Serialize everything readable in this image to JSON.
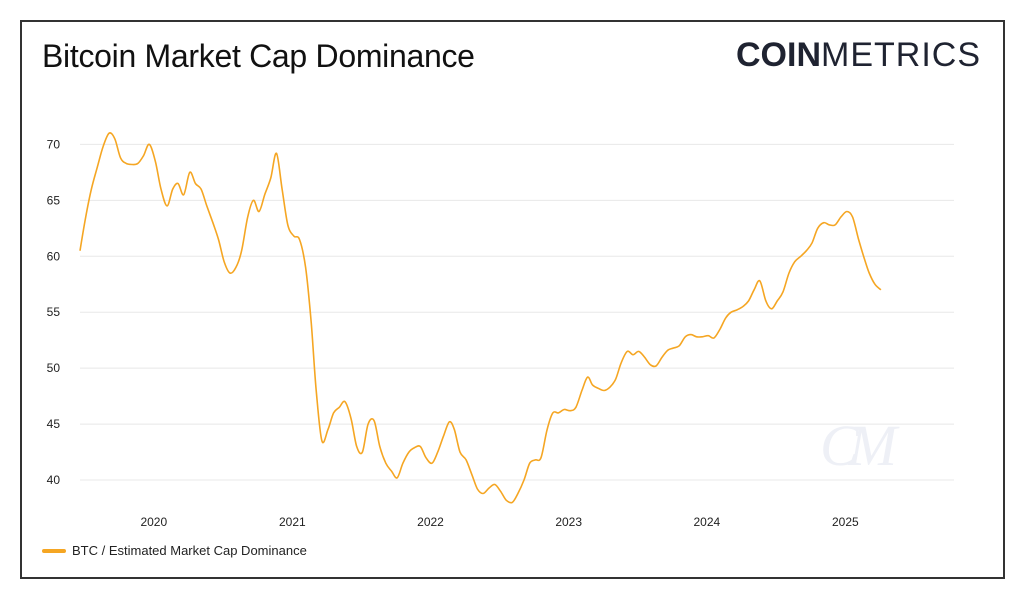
{
  "header": {
    "title": "Bitcoin Market Cap Dominance",
    "logo_bold": "COIN",
    "logo_light": "METRICS"
  },
  "watermark": "CM",
  "colors": {
    "series": "#f5a623",
    "grid": "#e8e8e8",
    "text": "#222222"
  },
  "chart_data": {
    "type": "line",
    "title": "Bitcoin Market Cap Dominance",
    "xlabel": "",
    "ylabel": "",
    "x_ticks": [
      "2020",
      "2021",
      "2022",
      "2023",
      "2024",
      "2025"
    ],
    "y_ticks": [
      40,
      45,
      50,
      55,
      60,
      65,
      70
    ],
    "xlim": [
      "2019-06-20",
      "2025-10-15"
    ],
    "ylim": [
      37.5,
      72
    ],
    "grid": "horizontal",
    "legend": "bottom-left",
    "series": [
      {
        "name": "BTC / Estimated Market Cap Dominance",
        "points": [
          [
            "2019-06-20",
            60.5
          ],
          [
            "2019-07-05",
            63.5
          ],
          [
            "2019-07-20",
            66.0
          ],
          [
            "2019-08-05",
            68.0
          ],
          [
            "2019-08-20",
            69.8
          ],
          [
            "2019-09-05",
            71.0
          ],
          [
            "2019-09-20",
            70.5
          ],
          [
            "2019-10-05",
            68.8
          ],
          [
            "2019-10-20",
            68.3
          ],
          [
            "2019-11-05",
            68.2
          ],
          [
            "2019-11-20",
            68.3
          ],
          [
            "2019-12-05",
            69.0
          ],
          [
            "2019-12-20",
            70.0
          ],
          [
            "2020-01-05",
            68.5
          ],
          [
            "2020-01-20",
            66.0
          ],
          [
            "2020-02-05",
            64.5
          ],
          [
            "2020-02-20",
            66.0
          ],
          [
            "2020-03-05",
            66.5
          ],
          [
            "2020-03-20",
            65.5
          ],
          [
            "2020-04-05",
            67.5
          ],
          [
            "2020-04-20",
            66.5
          ],
          [
            "2020-05-05",
            66.0
          ],
          [
            "2020-05-20",
            64.5
          ],
          [
            "2020-06-05",
            63.0
          ],
          [
            "2020-06-20",
            61.5
          ],
          [
            "2020-07-05",
            59.5
          ],
          [
            "2020-07-20",
            58.5
          ],
          [
            "2020-08-05",
            59.0
          ],
          [
            "2020-08-20",
            60.5
          ],
          [
            "2020-09-05",
            63.5
          ],
          [
            "2020-09-20",
            65.0
          ],
          [
            "2020-10-05",
            64.0
          ],
          [
            "2020-10-20",
            65.5
          ],
          [
            "2020-11-05",
            67.0
          ],
          [
            "2020-11-20",
            69.2
          ],
          [
            "2020-12-05",
            66.0
          ],
          [
            "2020-12-20",
            62.8
          ],
          [
            "2021-01-05",
            61.8
          ],
          [
            "2021-01-20",
            61.5
          ],
          [
            "2021-02-05",
            59.0
          ],
          [
            "2021-02-20",
            54.0
          ],
          [
            "2021-03-05",
            48.0
          ],
          [
            "2021-03-20",
            43.5
          ],
          [
            "2021-04-05",
            44.5
          ],
          [
            "2021-04-20",
            46.0
          ],
          [
            "2021-05-05",
            46.5
          ],
          [
            "2021-05-20",
            47.0
          ],
          [
            "2021-06-05",
            45.5
          ],
          [
            "2021-06-20",
            43.0
          ],
          [
            "2021-07-05",
            42.5
          ],
          [
            "2021-07-20",
            45.0
          ],
          [
            "2021-08-05",
            45.3
          ],
          [
            "2021-08-20",
            43.0
          ],
          [
            "2021-09-05",
            41.5
          ],
          [
            "2021-09-20",
            40.8
          ],
          [
            "2021-10-05",
            40.2
          ],
          [
            "2021-10-20",
            41.5
          ],
          [
            "2021-11-05",
            42.5
          ],
          [
            "2021-11-20",
            42.9
          ],
          [
            "2021-12-05",
            43.0
          ],
          [
            "2021-12-20",
            42.0
          ],
          [
            "2022-01-05",
            41.5
          ],
          [
            "2022-01-20",
            42.5
          ],
          [
            "2022-02-05",
            44.0
          ],
          [
            "2022-02-20",
            45.2
          ],
          [
            "2022-03-05",
            44.5
          ],
          [
            "2022-03-20",
            42.5
          ],
          [
            "2022-04-05",
            41.8
          ],
          [
            "2022-04-20",
            40.5
          ],
          [
            "2022-05-05",
            39.2
          ],
          [
            "2022-05-20",
            38.8
          ],
          [
            "2022-06-05",
            39.3
          ],
          [
            "2022-06-20",
            39.6
          ],
          [
            "2022-07-05",
            39.0
          ],
          [
            "2022-07-20",
            38.2
          ],
          [
            "2022-08-05",
            38.0
          ],
          [
            "2022-08-20",
            38.8
          ],
          [
            "2022-09-05",
            40.0
          ],
          [
            "2022-09-20",
            41.5
          ],
          [
            "2022-10-05",
            41.8
          ],
          [
            "2022-10-20",
            42.0
          ],
          [
            "2022-11-05",
            44.5
          ],
          [
            "2022-11-20",
            46.0
          ],
          [
            "2022-12-05",
            46.0
          ],
          [
            "2022-12-20",
            46.3
          ],
          [
            "2023-01-05",
            46.2
          ],
          [
            "2023-01-20",
            46.5
          ],
          [
            "2023-02-05",
            48.0
          ],
          [
            "2023-02-20",
            49.2
          ],
          [
            "2023-03-05",
            48.5
          ],
          [
            "2023-03-20",
            48.2
          ],
          [
            "2023-04-05",
            48.0
          ],
          [
            "2023-04-20",
            48.3
          ],
          [
            "2023-05-05",
            49.0
          ],
          [
            "2023-05-20",
            50.5
          ],
          [
            "2023-06-05",
            51.5
          ],
          [
            "2023-06-20",
            51.2
          ],
          [
            "2023-07-05",
            51.5
          ],
          [
            "2023-07-20",
            51.0
          ],
          [
            "2023-08-05",
            50.3
          ],
          [
            "2023-08-20",
            50.2
          ],
          [
            "2023-09-05",
            51.0
          ],
          [
            "2023-09-20",
            51.6
          ],
          [
            "2023-10-05",
            51.8
          ],
          [
            "2023-10-20",
            52.0
          ],
          [
            "2023-11-05",
            52.8
          ],
          [
            "2023-11-20",
            53.0
          ],
          [
            "2023-12-05",
            52.8
          ],
          [
            "2023-12-20",
            52.8
          ],
          [
            "2024-01-05",
            52.9
          ],
          [
            "2024-01-20",
            52.7
          ],
          [
            "2024-02-05",
            53.5
          ],
          [
            "2024-02-20",
            54.5
          ],
          [
            "2024-03-05",
            55.0
          ],
          [
            "2024-03-20",
            55.2
          ],
          [
            "2024-04-05",
            55.5
          ],
          [
            "2024-04-20",
            56.0
          ],
          [
            "2024-05-05",
            57.0
          ],
          [
            "2024-05-20",
            57.8
          ],
          [
            "2024-06-05",
            56.0
          ],
          [
            "2024-06-20",
            55.3
          ],
          [
            "2024-07-05",
            56.0
          ],
          [
            "2024-07-20",
            56.8
          ],
          [
            "2024-08-05",
            58.5
          ],
          [
            "2024-08-20",
            59.5
          ],
          [
            "2024-09-05",
            60.0
          ],
          [
            "2024-09-20",
            60.5
          ],
          [
            "2024-10-05",
            61.2
          ],
          [
            "2024-10-20",
            62.5
          ],
          [
            "2024-11-05",
            63.0
          ],
          [
            "2024-11-20",
            62.8
          ],
          [
            "2024-12-05",
            62.8
          ],
          [
            "2024-12-20",
            63.5
          ],
          [
            "2025-01-05",
            64.0
          ],
          [
            "2025-01-20",
            63.5
          ],
          [
            "2025-02-05",
            61.5
          ],
          [
            "2025-02-20",
            59.8
          ],
          [
            "2025-03-05",
            58.5
          ],
          [
            "2025-03-20",
            57.5
          ],
          [
            "2025-04-05",
            57.0
          ]
        ]
      }
    ]
  }
}
